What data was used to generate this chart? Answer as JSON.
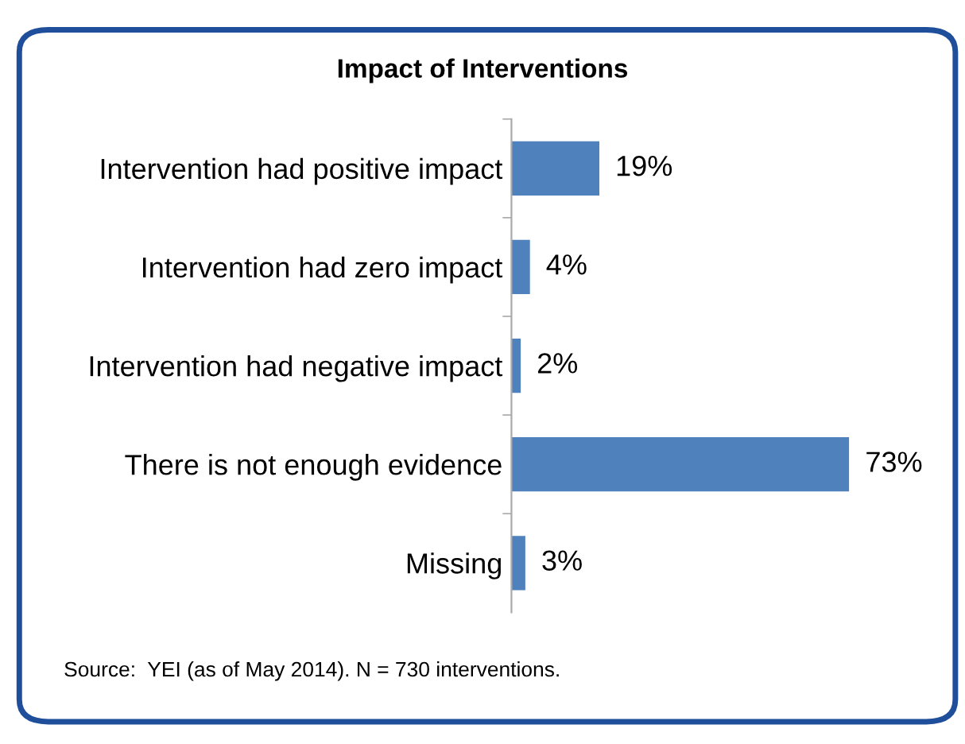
{
  "chart_data": {
    "type": "bar",
    "orientation": "horizontal",
    "title": "Impact of Interventions",
    "categories": [
      "Intervention had positive impact",
      "Intervention had zero impact",
      "Intervention had negative impact",
      "There is not enough evidence",
      "Missing"
    ],
    "values": [
      19,
      4,
      2,
      73,
      3
    ],
    "value_labels": [
      "19%",
      "4%",
      "2%",
      "73%",
      "3%"
    ],
    "color": "#4f81bd",
    "grid": false,
    "legend": false,
    "annotations": [
      "Source:  YEI (as of May 2014). N = 730 interventions."
    ]
  }
}
